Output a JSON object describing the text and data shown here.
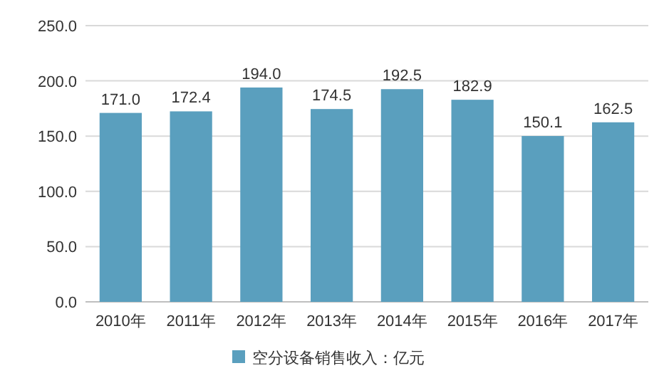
{
  "chart_data": {
    "type": "bar",
    "categories": [
      "2010年",
      "2011年",
      "2012年",
      "2013年",
      "2014年",
      "2015年",
      "2016年",
      "2017年"
    ],
    "series": [
      {
        "name": "空分设备销售收入：亿元",
        "color": "#5a9fbe",
        "values": [
          171.0,
          172.4,
          194.0,
          174.5,
          192.5,
          182.9,
          150.1,
          162.5
        ],
        "value_labels": [
          "171.0",
          "172.4",
          "194.0",
          "174.5",
          "192.5",
          "182.9",
          "150.1",
          "162.5"
        ]
      }
    ],
    "ylim": [
      0,
      250
    ],
    "yticks": [
      {
        "value": 0,
        "label": "0.0"
      },
      {
        "value": 50,
        "label": "50.0"
      },
      {
        "value": 100,
        "label": "100.0"
      },
      {
        "value": 150,
        "label": "150.0"
      },
      {
        "value": 200,
        "label": "200.0"
      },
      {
        "value": 250,
        "label": "250.0"
      }
    ],
    "grid": "y",
    "legend": "bottom"
  }
}
